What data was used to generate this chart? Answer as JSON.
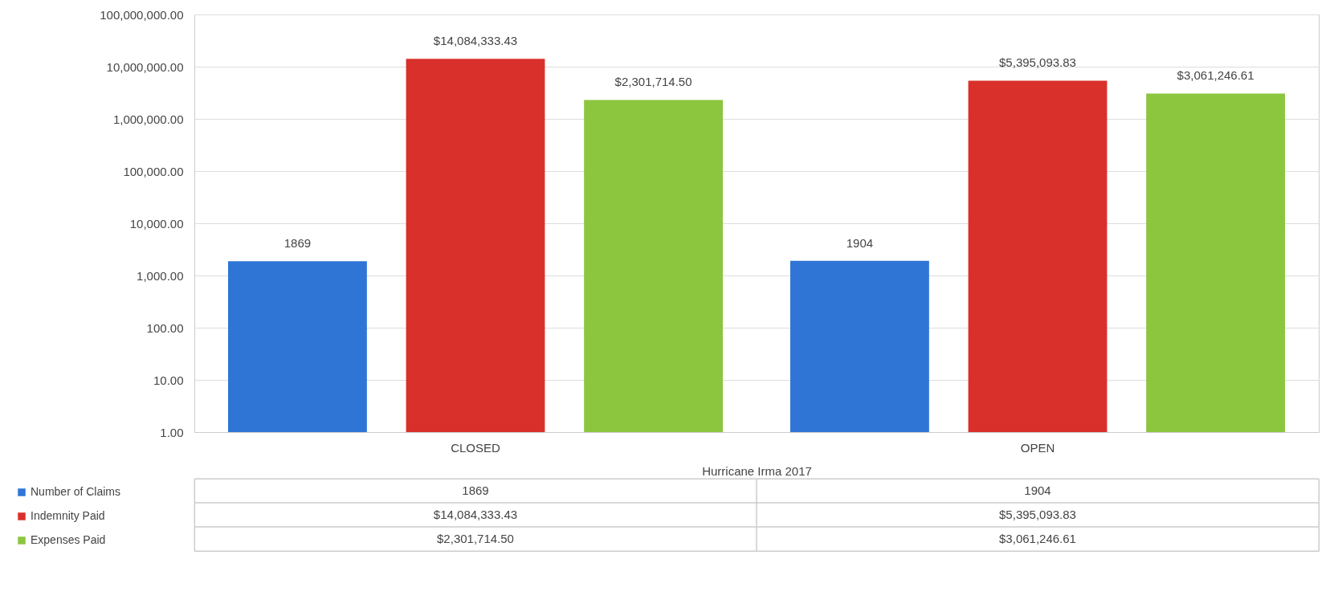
{
  "chart_data": {
    "type": "bar",
    "categories": [
      "CLOSED",
      "OPEN"
    ],
    "xlabel": "Hurricane Irma 2017",
    "series": [
      {
        "name": "Number of Claims",
        "color": "#2e75d6",
        "values": [
          1869,
          1904
        ],
        "value_labels": [
          "1869",
          "1904"
        ]
      },
      {
        "name": "Indemnity Paid",
        "color": "#d9302b",
        "values": [
          14084333.43,
          5395093.83
        ],
        "value_labels": [
          "$14,084,333.43",
          "$5,395,093.83"
        ]
      },
      {
        "name": "Expenses Paid",
        "color": "#8cc63f",
        "values": [
          2301714.5,
          3061246.61
        ],
        "value_labels": [
          "$2,301,714.50",
          "$3,061,246.61"
        ]
      }
    ],
    "log": true,
    "ylim": [
      1,
      100000000
    ],
    "yticks": [
      {
        "value": 1,
        "label": "1.00"
      },
      {
        "value": 10,
        "label": "10.00"
      },
      {
        "value": 100,
        "label": "100.00"
      },
      {
        "value": 1000,
        "label": "1,000.00"
      },
      {
        "value": 10000,
        "label": "10,000.00"
      },
      {
        "value": 100000,
        "label": "100,000.00"
      },
      {
        "value": 1000000,
        "label": "1,000,000.00"
      },
      {
        "value": 10000000,
        "label": "10,000,000.00"
      },
      {
        "value": 100000000,
        "label": "100,000,000.00"
      }
    ],
    "grid": "y",
    "legend": "bottom left"
  }
}
